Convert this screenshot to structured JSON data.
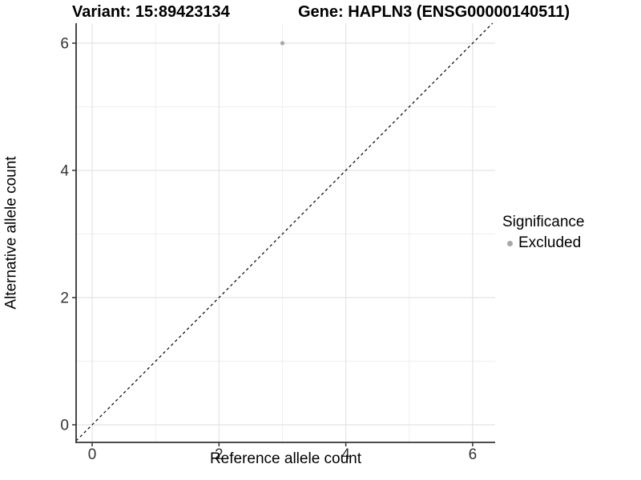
{
  "header": {
    "variant_title": "Variant: 15:89423134",
    "gene_title": "Gene: HAPLN3 (ENSG00000140511)"
  },
  "chart_data": {
    "type": "scatter",
    "xlabel": "Reference allele count",
    "ylabel": "Alternative allele count",
    "xticks": [
      0,
      2,
      4,
      6
    ],
    "yticks": [
      0,
      2,
      4,
      6
    ],
    "xlim": [
      -0.253,
      6.355
    ],
    "ylim": [
      -0.277,
      6.314
    ],
    "grid": {
      "major": [
        0,
        2,
        4,
        6
      ],
      "minor": [
        1,
        3,
        5
      ]
    },
    "identity_line": {
      "style": "dashed",
      "slope": 1,
      "intercept": 0
    },
    "series": [
      {
        "name": "Excluded",
        "color": "#a8a8a8",
        "points": [
          {
            "x": 3,
            "y": 6
          }
        ]
      }
    ],
    "legend": {
      "title": "Significance",
      "position": "right",
      "items": [
        {
          "label": "Excluded",
          "color": "#a8a8a8"
        }
      ]
    }
  },
  "colors": {
    "background": "#ffffff",
    "axis_line": "#333333",
    "tick_text": "#333333",
    "grid_major": "#e4e4e4",
    "grid_minor": "#efefef",
    "identity_line": "#000000",
    "point": "#a8a8a8"
  }
}
